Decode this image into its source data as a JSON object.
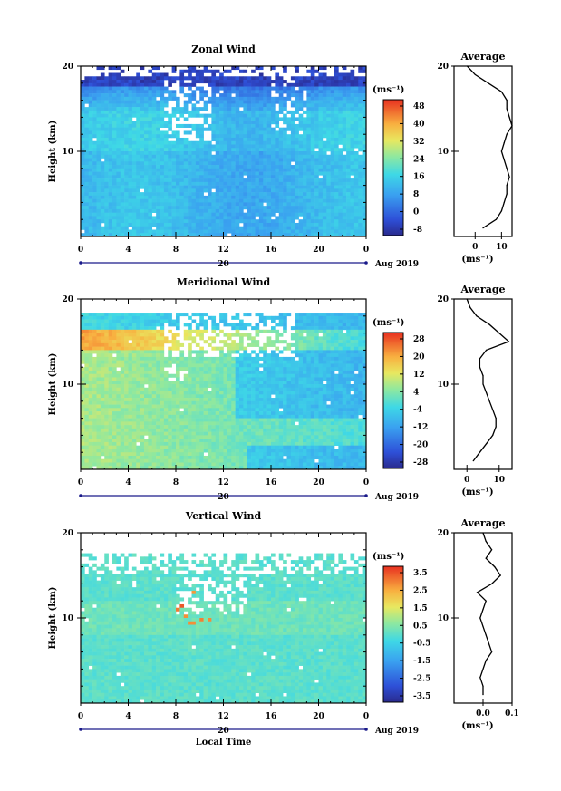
{
  "panels": [
    {
      "title": "Zonal Wind",
      "ylabel": "Height (km)",
      "unit_label": "(ms⁻¹)",
      "colorbar_ticks": [
        "48",
        "40",
        "32",
        "24",
        "16",
        "8",
        "0",
        "-8"
      ],
      "yticks": [
        "20",
        "10"
      ],
      "xticks": [
        "0",
        "4",
        "8",
        "12",
        "16",
        "20",
        "0"
      ],
      "date_tick": "20",
      "date_label": "Aug 2019",
      "avg_title": "Average",
      "avg_xticks": [
        "0",
        "10"
      ],
      "avg_yticks": [
        "20",
        "10"
      ],
      "avg_xlabel": "(ms⁻¹)"
    },
    {
      "title": "Meridional Wind",
      "ylabel": "Height (km)",
      "unit_label": "(ms⁻¹)",
      "colorbar_ticks": [
        "28",
        "20",
        "12",
        "4",
        "-4",
        "-12",
        "-20",
        "-28"
      ],
      "yticks": [
        "20",
        "10"
      ],
      "xticks": [
        "0",
        "4",
        "8",
        "12",
        "16",
        "20",
        "0"
      ],
      "date_tick": "20",
      "date_label": "Aug 2019",
      "avg_title": "Average",
      "avg_xticks": [
        "0",
        "10"
      ],
      "avg_yticks": [
        "20",
        "10"
      ],
      "avg_xlabel": "(ms⁻¹)"
    },
    {
      "title": "Vertical Wind",
      "ylabel": "Height (km)",
      "unit_label": "(ms⁻¹)",
      "colorbar_ticks": [
        "3.5",
        "2.5",
        "1.5",
        "0.5",
        "-0.5",
        "-1.5",
        "-2.5",
        "-3.5"
      ],
      "yticks": [
        "20",
        "10"
      ],
      "xticks": [
        "0",
        "4",
        "8",
        "12",
        "16",
        "20",
        "0"
      ],
      "date_tick": "20",
      "date_label": "Aug 2019",
      "avg_title": "Average",
      "avg_xticks": [
        "0.0",
        "0.1"
      ],
      "avg_yticks": [
        "20",
        "10"
      ],
      "avg_xlabel": "(ms⁻¹)"
    }
  ],
  "bottom_xlabel": "Local Time",
  "chart_data": [
    {
      "type": "heatmap",
      "title": "Zonal Wind",
      "ylabel": "Height (km)",
      "ylim": [
        0,
        20
      ],
      "xlim": [
        0,
        24
      ],
      "colorbar_range": [
        -8,
        52
      ],
      "colorbar_unit": "(ms⁻¹)",
      "profile": {
        "title": "Average",
        "xlim": [
          -8,
          14
        ],
        "heights": [
          1,
          2,
          3,
          4,
          5,
          6,
          7,
          8,
          9,
          10,
          11,
          12,
          13,
          14,
          15,
          16,
          17,
          18,
          19,
          20
        ],
        "values": [
          3,
          8,
          10,
          11,
          12,
          12,
          13,
          12,
          11,
          10,
          11,
          12,
          14,
          13,
          12,
          12,
          10,
          5,
          0,
          -3
        ]
      }
    },
    {
      "type": "heatmap",
      "title": "Meridional Wind",
      "ylabel": "Height (km)",
      "ylim": [
        0,
        20
      ],
      "xlim": [
        0,
        24
      ],
      "colorbar_range": [
        -32,
        32
      ],
      "colorbar_unit": "(ms⁻¹)",
      "profile": {
        "title": "Average",
        "xlim": [
          -4,
          14
        ],
        "heights": [
          1,
          2,
          3,
          4,
          5,
          6,
          7,
          8,
          9,
          10,
          11,
          12,
          13,
          14,
          15,
          16,
          17,
          18,
          19,
          20
        ],
        "values": [
          2,
          4,
          6,
          8,
          9,
          9,
          8,
          7,
          6,
          5,
          5,
          4,
          4,
          6,
          13,
          10,
          7,
          3,
          1,
          0
        ]
      }
    },
    {
      "type": "heatmap",
      "title": "Vertical Wind",
      "ylabel": "Height (km)",
      "ylim": [
        0,
        20
      ],
      "xlim": [
        0,
        24
      ],
      "colorbar_range": [
        -4,
        4
      ],
      "colorbar_unit": "(ms⁻¹)",
      "profile": {
        "title": "Average",
        "xlim": [
          -0.1,
          0.1
        ],
        "heights": [
          1,
          2,
          3,
          4,
          5,
          6,
          7,
          8,
          9,
          10,
          11,
          12,
          13,
          14,
          15,
          16,
          17,
          18,
          19,
          20
        ],
        "values": [
          0.0,
          0.0,
          -0.01,
          0.0,
          0.01,
          0.03,
          0.02,
          0.01,
          0.0,
          -0.01,
          0.0,
          0.01,
          -0.02,
          0.03,
          0.06,
          0.04,
          0.01,
          0.03,
          0.01,
          0.0
        ]
      }
    }
  ]
}
